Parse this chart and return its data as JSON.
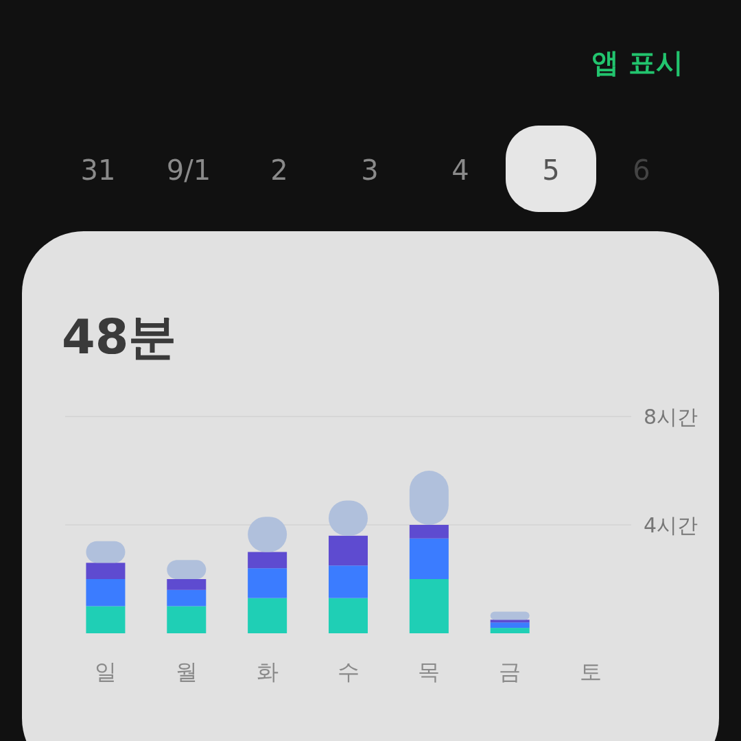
{
  "chart_data": {
    "type": "bar",
    "stacked": true,
    "title": "48분",
    "categories": [
      "일",
      "월",
      "화",
      "수",
      "목",
      "금",
      "토"
    ],
    "series": [
      {
        "color": "#1fcfb5",
        "values": [
          1.0,
          1.0,
          1.3,
          1.3,
          2.0,
          0.2,
          null
        ]
      },
      {
        "color": "#3b7cff",
        "values": [
          1.0,
          0.6,
          1.1,
          1.2,
          1.5,
          0.2,
          null
        ]
      },
      {
        "color": "#5e4bd0",
        "values": [
          0.6,
          0.4,
          0.6,
          1.1,
          0.5,
          0.1,
          null
        ]
      },
      {
        "color": "#b0c0dc",
        "values": [
          0.8,
          0.7,
          1.3,
          1.3,
          2.0,
          0.3,
          null
        ]
      }
    ],
    "ylim": [
      0,
      8
    ],
    "yticks": [
      {
        "value": 4,
        "label": "4시간"
      },
      {
        "value": 8,
        "label": "8시간"
      }
    ],
    "grid": "y",
    "annotations": [
      "앱 표시",
      "31",
      "9/1",
      "2",
      "3",
      "4",
      "5",
      "6"
    ]
  }
}
